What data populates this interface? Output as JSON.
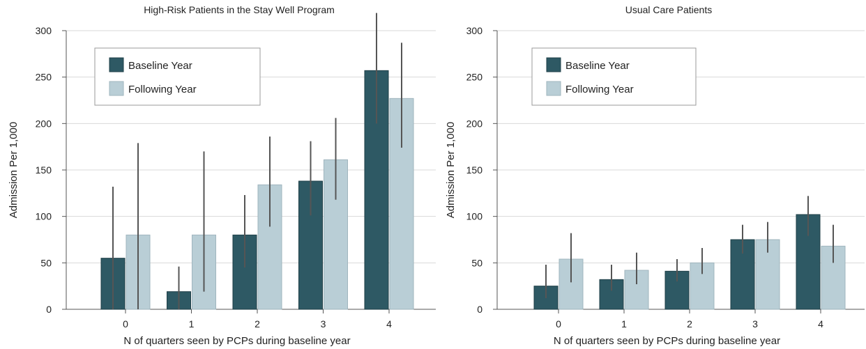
{
  "chart_data": [
    {
      "type": "bar",
      "title": "High-Risk Patients in the Stay Well Program",
      "xlabel": "N of quarters seen by PCPs during baseline year",
      "ylabel": "Admission Per 1,000",
      "ylim": [
        0,
        300
      ],
      "yticks": [
        0,
        50,
        100,
        150,
        200,
        250,
        300
      ],
      "categories": [
        "0",
        "1",
        "2",
        "3",
        "4"
      ],
      "grid": true,
      "legend": "top-left",
      "series": [
        {
          "name": "Baseline Year",
          "color": "#2e5964",
          "values": [
            55,
            19,
            80,
            138,
            257
          ],
          "error_low": [
            0,
            0,
            45,
            101,
            200
          ],
          "error_high": [
            132,
            46,
            123,
            181,
            319
          ]
        },
        {
          "name": "Following Year",
          "color": "#b9ced6",
          "values": [
            80,
            80,
            134,
            161,
            227
          ],
          "error_low": [
            0,
            19,
            89,
            118,
            174
          ],
          "error_high": [
            179,
            170,
            186,
            206,
            287
          ]
        }
      ]
    },
    {
      "type": "bar",
      "title": "Usual Care Patients",
      "xlabel": "N of quarters seen by PCPs during baseline year",
      "ylabel": "Admission Per 1,000",
      "ylim": [
        0,
        300
      ],
      "yticks": [
        0,
        50,
        100,
        150,
        200,
        250,
        300
      ],
      "categories": [
        "0",
        "1",
        "2",
        "3",
        "4"
      ],
      "grid": true,
      "legend": "top-left",
      "series": [
        {
          "name": "Baseline Year",
          "color": "#2e5964",
          "values": [
            25,
            32,
            41,
            75,
            102
          ],
          "error_low": [
            12,
            20,
            30,
            60,
            79
          ],
          "error_high": [
            48,
            48,
            54,
            91,
            122
          ]
        },
        {
          "name": "Following Year",
          "color": "#b9ced6",
          "values": [
            54,
            42,
            50,
            75,
            68
          ],
          "error_low": [
            29,
            27,
            38,
            61,
            50
          ],
          "error_high": [
            82,
            61,
            66,
            94,
            91
          ]
        }
      ]
    }
  ]
}
